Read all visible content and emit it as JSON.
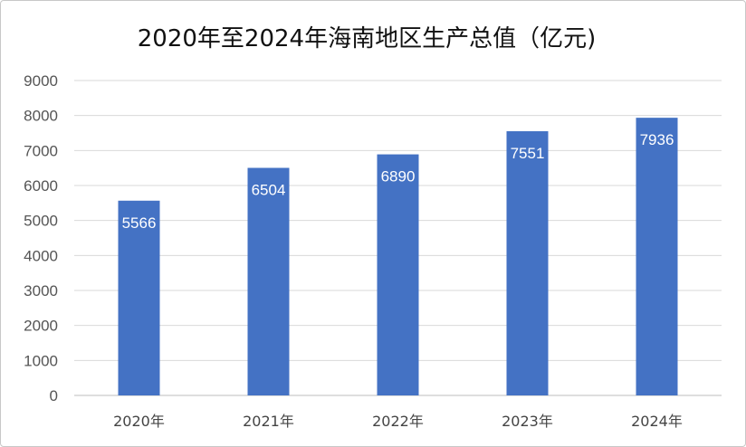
{
  "chart_data": {
    "type": "bar",
    "title": "2020年至2024年海南地区生产总值（亿元)",
    "categories": [
      "2020年",
      "2021年",
      "2022年",
      "2023年",
      "2024年"
    ],
    "values": [
      5566,
      6504,
      6890,
      7551,
      7936
    ],
    "data_labels": [
      "5566",
      "6504",
      "6890",
      "7551",
      "7936"
    ],
    "ylim": [
      0,
      9000
    ],
    "yticks": [
      "0",
      "1000",
      "2000",
      "3000",
      "4000",
      "5000",
      "6000",
      "7000",
      "8000",
      "9000"
    ],
    "grid": true,
    "legend": "none",
    "bar_color": "#4472C4"
  }
}
